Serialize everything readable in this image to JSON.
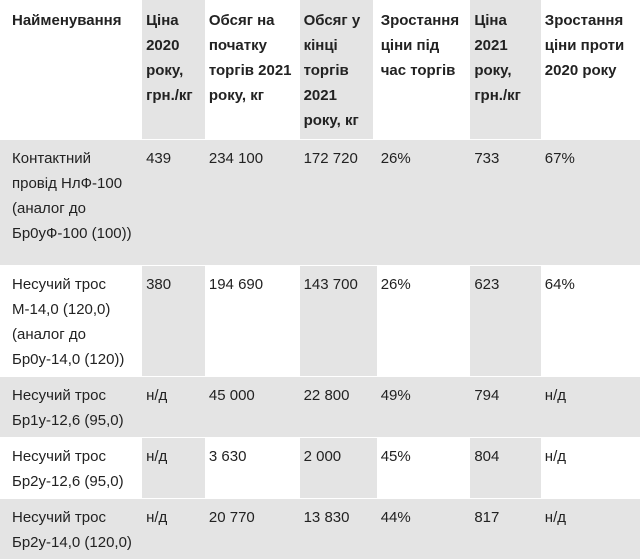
{
  "table": {
    "headers": [
      "Найменування",
      "Ціна 2020 року, грн./кг",
      "Обсяг на початку торгів 2021 року, кг",
      "Обсяг у кінці торгів 2021 року, кг",
      "Зростання ціни під час торгів",
      "Ціна 2021 року, грн./кг",
      "Зростання ціни проти 2020 року"
    ],
    "rows": [
      [
        "Контактний провід НлФ-100 (аналог до Бр0уФ-100 (100))",
        "439",
        "234 100",
        "172 720",
        "26%",
        "733",
        "67%"
      ],
      [
        "Несучий трос М-14,0 (120,0) (аналог до Бр0у-14,0 (120))",
        "380",
        "194 690",
        "143 700",
        "26%",
        "623",
        "64%"
      ],
      [
        "Несучий трос Бр1у-12,6 (95,0)",
        "н/д",
        "45 000",
        "22 800",
        "49%",
        "794",
        "н/д"
      ],
      [
        "Несучий трос Бр2у-12,6 (95,0)",
        "н/д",
        "3 630",
        "2 000",
        "45%",
        "804",
        "н/д"
      ],
      [
        "Несучий трос Бр2у-14,0 (120,0)",
        "н/д",
        "20 770",
        "13 830",
        "44%",
        "817",
        "н/д"
      ]
    ]
  }
}
